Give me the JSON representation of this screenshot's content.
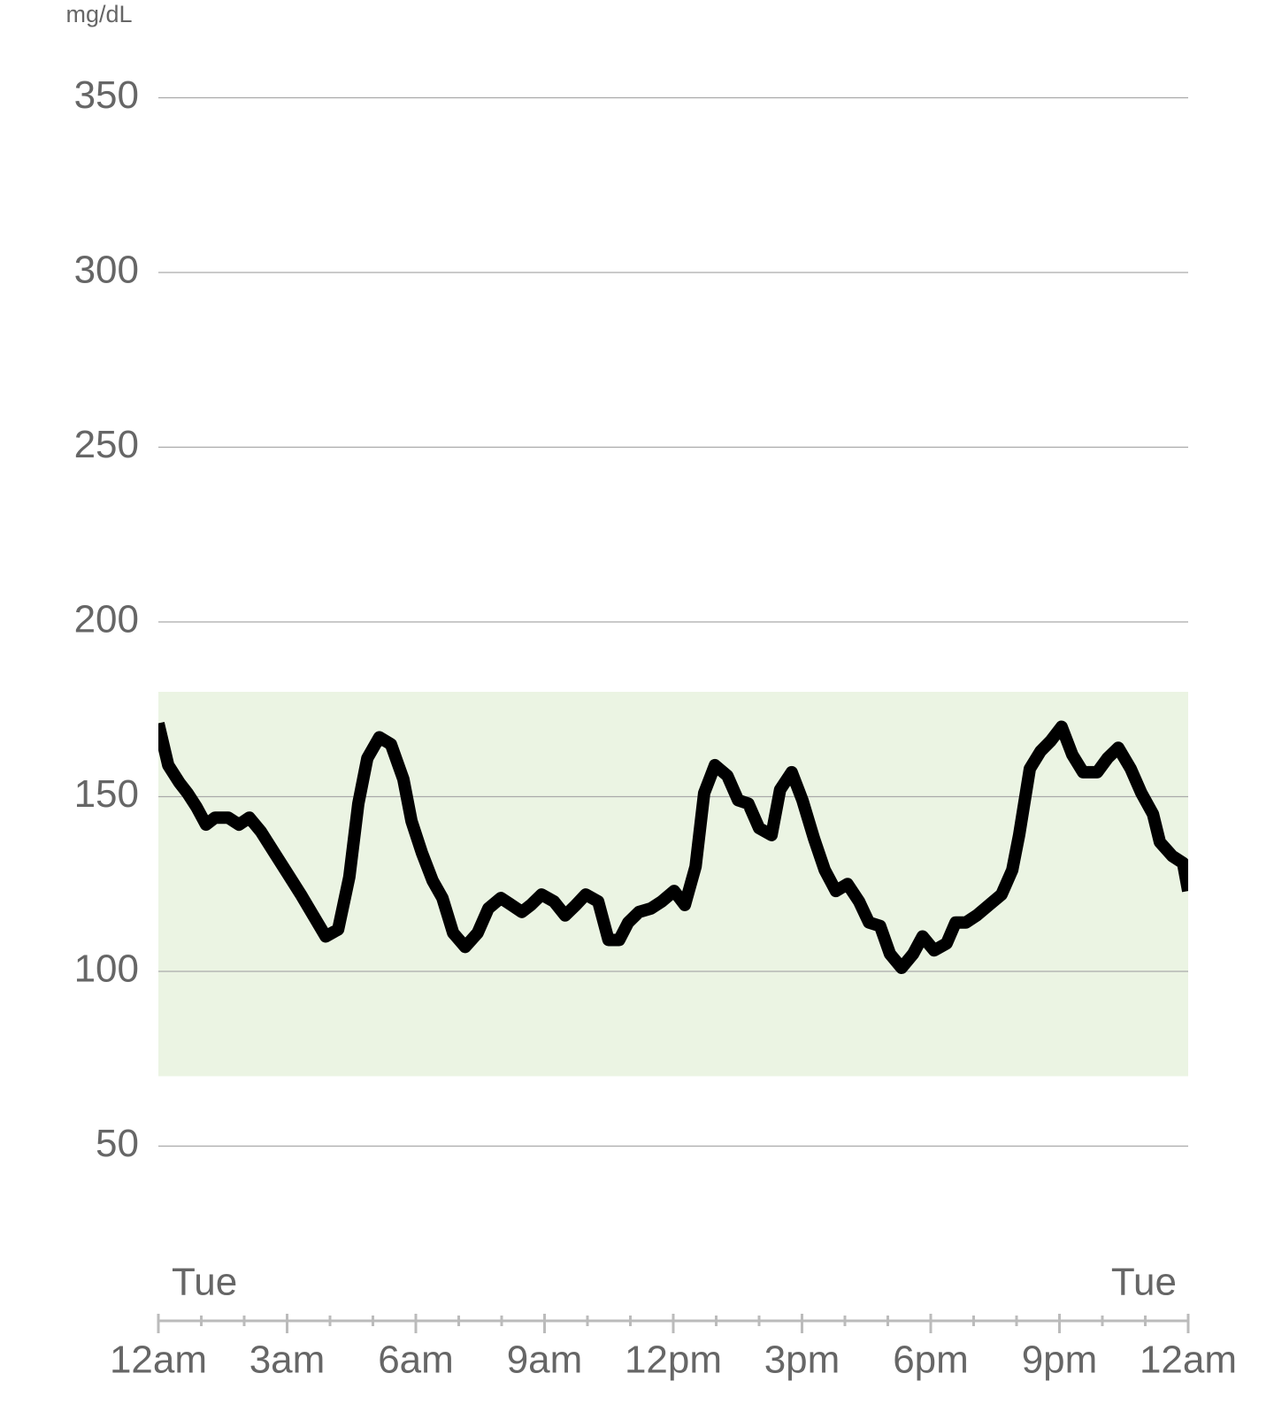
{
  "chart_data": {
    "type": "line",
    "y_label": "mg/dL",
    "xlim": [
      0,
      24
    ],
    "ylim": [
      0,
      360
    ],
    "yticks": [
      50,
      100,
      150,
      200,
      250,
      300,
      350
    ],
    "xticks": [
      {
        "value": 0,
        "label": "12am"
      },
      {
        "value": 3,
        "label": "3am"
      },
      {
        "value": 6,
        "label": "6am"
      },
      {
        "value": 9,
        "label": "9am"
      },
      {
        "value": 12,
        "label": "12pm"
      },
      {
        "value": 15,
        "label": "3pm"
      },
      {
        "value": 18,
        "label": "6pm"
      },
      {
        "value": 21,
        "label": "9pm"
      },
      {
        "value": 24,
        "label": "12am"
      }
    ],
    "xminorticks": [
      0,
      1,
      2,
      3,
      4,
      5,
      6,
      7,
      8,
      9,
      10,
      11,
      12,
      13,
      14,
      15,
      16,
      17,
      18,
      19,
      20,
      21,
      22,
      23,
      24
    ],
    "day_labels": [
      {
        "value": 0,
        "label": "Tue"
      },
      {
        "value": 24,
        "label": "Tue"
      }
    ],
    "target_range": [
      70,
      180
    ],
    "target_color": "#ebf4e3",
    "grid": true,
    "series": [
      {
        "color": "#000000",
        "x": [
          0,
          0.23,
          0.49,
          0.68,
          0.89,
          1.11,
          1.32,
          1.63,
          1.88,
          2.12,
          2.39,
          2.7,
          3.01,
          3.32,
          3.61,
          3.9,
          4.19,
          4.45,
          4.66,
          4.87,
          5.15,
          5.42,
          5.71,
          5.9,
          6.14,
          6.39,
          6.62,
          6.87,
          7.15,
          7.44,
          7.69,
          7.98,
          8.23,
          8.47,
          8.68,
          8.93,
          9.22,
          9.48,
          9.73,
          9.96,
          10.25,
          10.49,
          10.74,
          10.95,
          11.2,
          11.48,
          11.73,
          12.02,
          12.27,
          12.52,
          12.72,
          12.97,
          13.26,
          13.51,
          13.75,
          14,
          14.29,
          14.49,
          14.76,
          15.01,
          15.28,
          15.53,
          15.79,
          16.06,
          16.33,
          16.56,
          16.82,
          17.05,
          17.32,
          17.59,
          17.81,
          18.08,
          18.37,
          18.58,
          18.82,
          19.07,
          19.36,
          19.65,
          19.9,
          20.06,
          20.31,
          20.56,
          20.8,
          21.05,
          21.3,
          21.55,
          21.88,
          22.12,
          22.37,
          22.66,
          22.91,
          23.18,
          23.34,
          23.63,
          23.88,
          24
        ],
        "values": [
          171,
          159,
          154,
          151,
          147,
          142,
          144,
          144,
          142,
          144,
          140,
          134,
          128,
          122,
          116,
          110,
          112,
          127,
          148,
          161,
          167,
          165,
          155,
          143,
          134,
          126,
          121,
          111,
          107,
          111,
          118,
          121,
          119,
          117,
          119,
          122,
          120,
          116,
          119,
          122,
          120,
          109,
          109,
          114,
          117,
          118,
          120,
          123,
          119,
          130,
          151,
          159,
          156,
          149,
          148,
          141,
          139,
          152,
          157,
          149,
          138,
          129,
          123,
          125,
          120,
          114,
          113,
          105,
          101,
          105,
          110,
          106,
          108,
          114,
          114,
          116,
          119,
          122,
          129,
          139,
          158,
          163,
          166,
          170,
          162,
          157,
          157,
          161,
          164,
          158,
          151,
          145,
          137,
          133,
          131,
          123
        ]
      }
    ]
  }
}
